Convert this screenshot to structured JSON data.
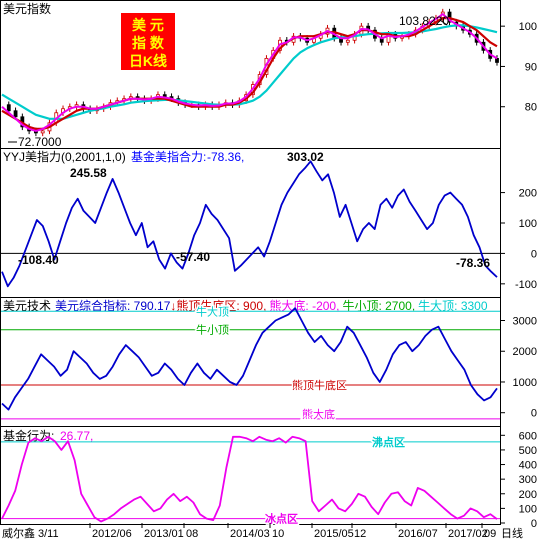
{
  "colors": {
    "bg": "#ffffff",
    "border": "#000000",
    "blue": "#0000cc",
    "red": "#cc0000",
    "magenta": "#ee00ee",
    "cyan": "#00cccc",
    "green": "#00aa00",
    "text": "#000000",
    "label_blue": "#0000ff"
  },
  "chart_data": [
    {
      "type": "candlestick",
      "panel_title": "美元指数",
      "badge_lines": [
        "美 元",
        "指 数",
        "日K线"
      ],
      "high_label": "103.8220",
      "low_label": "72.7000",
      "ylim": [
        70,
        106
      ],
      "yticks": [
        80,
        90,
        100
      ],
      "series": [
        {
          "name": "close",
          "color": "#000000",
          "values": [
            80.5,
            79,
            77.5,
            75,
            74,
            73.5,
            74,
            76,
            78.5,
            79.5,
            80,
            80.5,
            79.5,
            79,
            79.5,
            80,
            81,
            81.5,
            82,
            82.5,
            82,
            81.5,
            82,
            83,
            82.5,
            82,
            81,
            80.5,
            80.5,
            80,
            80.5,
            80,
            80.5,
            81,
            80.5,
            81.5,
            83,
            85.5,
            88,
            92,
            94,
            96.5,
            96,
            97.5,
            97,
            96,
            97,
            98,
            99.5,
            97,
            96,
            96.5,
            98,
            100,
            99,
            97,
            96,
            98,
            97,
            97.5,
            98,
            99,
            100,
            101,
            102,
            103.5,
            101,
            100,
            99,
            98,
            96,
            94,
            92,
            91
          ]
        },
        {
          "color": "#cc0000",
          "values": [
            79,
            78,
            77,
            76,
            75,
            74.5,
            74.5,
            75,
            76,
            77,
            78,
            79,
            79.5,
            79.5,
            79.5,
            80,
            80.5,
            81,
            81.5,
            82,
            82,
            82,
            82,
            82,
            82,
            81.5,
            81,
            80.5,
            80,
            80,
            80,
            80,
            80,
            80.5,
            80.5,
            81,
            82,
            83.5,
            86,
            89,
            92,
            94.5,
            96,
            97,
            97.5,
            97.5,
            97.5,
            98,
            98.5,
            98.5,
            98,
            97.5,
            98,
            99,
            99,
            98.5,
            98,
            98,
            97.5,
            97.5,
            97.5,
            98,
            99,
            100,
            101,
            102,
            102,
            101.5,
            101,
            100,
            99,
            97.5,
            96,
            95
          ]
        },
        {
          "color": "#ee00ee",
          "values": [
            80,
            78.5,
            77,
            75.5,
            74.5,
            74,
            74.5,
            75.5,
            77,
            78.5,
            79.5,
            80,
            80,
            79.5,
            79.5,
            80,
            80.5,
            81,
            81.5,
            82,
            82,
            81.8,
            82,
            82.5,
            82.3,
            82,
            81.3,
            80.8,
            80.5,
            80.3,
            80.4,
            80.2,
            80.3,
            80.8,
            80.8,
            81.3,
            82.5,
            84.5,
            87,
            90.5,
            93,
            95.5,
            96,
            97.2,
            97.2,
            96.5,
            97,
            97.8,
            98.8,
            98,
            97,
            97,
            97.8,
            99.3,
            99.2,
            98,
            97,
            97.6,
            97.3,
            97.5,
            97.9,
            98.7,
            99.8,
            100.8,
            101.8,
            103,
            101.5,
            100.5,
            99.5,
            98.5,
            97,
            95,
            93,
            92
          ]
        },
        {
          "color": "#00cccc",
          "values": [
            83,
            82,
            81,
            80,
            79,
            78,
            77.5,
            77,
            77,
            77,
            77.5,
            78,
            78.5,
            79,
            79.3,
            79.6,
            80,
            80.3,
            80.6,
            81,
            81.2,
            81.4,
            81.5,
            81.6,
            81.7,
            81.7,
            81.6,
            81.4,
            81.2,
            81,
            80.8,
            80.6,
            80.5,
            80.5,
            80.5,
            80.6,
            81,
            81.5,
            82.5,
            84,
            86,
            88,
            90,
            92,
            93.5,
            94.5,
            95.3,
            96,
            96.5,
            97,
            97.2,
            97.3,
            97.5,
            97.8,
            98,
            98.1,
            98.2,
            98.3,
            98.3,
            98.3,
            98.4,
            98.5,
            98.7,
            99,
            99.3,
            99.7,
            100,
            100.2,
            100.2,
            100,
            99.7,
            99.3,
            98.9,
            98.5
          ]
        }
      ]
    },
    {
      "type": "line",
      "panel_title": "YYJ美指力(0,2001,1,0)",
      "legend_label": "基金美指合力:",
      "legend_value": "-78.36,",
      "ylim": [
        -140,
        340
      ],
      "yticks": [
        -100,
        0,
        100,
        200
      ],
      "zero_line": 0,
      "annotations": [
        "245.58",
        "-108.40",
        "-57.40",
        "303.02",
        "-78.36"
      ],
      "series": [
        {
          "name": "基金美指合力",
          "color": "#0000cc",
          "values": [
            -60,
            -108,
            -80,
            -40,
            10,
            60,
            110,
            90,
            40,
            -20,
            40,
            100,
            150,
            180,
            140,
            120,
            100,
            150,
            200,
            245,
            200,
            150,
            100,
            60,
            100,
            20,
            40,
            -20,
            -50,
            0,
            -30,
            -50,
            0,
            60,
            100,
            160,
            130,
            110,
            80,
            50,
            -57,
            -40,
            -20,
            0,
            20,
            -10,
            40,
            100,
            160,
            200,
            230,
            260,
            280,
            303,
            270,
            240,
            260,
            200,
            120,
            160,
            100,
            40,
            80,
            100,
            80,
            160,
            180,
            150,
            190,
            210,
            170,
            140,
            110,
            80,
            100,
            160,
            190,
            200,
            180,
            160,
            120,
            60,
            20,
            -40,
            -60,
            -78
          ]
        }
      ]
    },
    {
      "type": "line",
      "panel_title": "美元技术",
      "legend_items": [
        {
          "label": "美元综合指标: 790.17",
          "color": "#0000cc"
        },
        {
          "label": "↓",
          "color": "#cc0000"
        },
        {
          "label": "熊顶牛底区: 900,",
          "color": "#cc0000"
        },
        {
          "label": "熊大底: -200,",
          "color": "#ee00ee"
        },
        {
          "label": "牛小顶: 2700,",
          "color": "#00aa00"
        },
        {
          "label": "牛大顶: 3300",
          "color": "#00cccc"
        }
      ],
      "ylim": [
        -400,
        3700
      ],
      "yticks": [
        0,
        1000,
        2000,
        3000
      ],
      "ref_lines": [
        {
          "label": "牛大顶",
          "value": 3300,
          "color": "#00cccc"
        },
        {
          "label": "牛小顶",
          "value": 2700,
          "color": "#00aa00"
        },
        {
          "label": "熊顶牛底区",
          "value": 900,
          "color": "#cc0000"
        },
        {
          "label": "熊大底",
          "value": -200,
          "color": "#ee00ee"
        }
      ],
      "series": [
        {
          "name": "美元综合指标",
          "color": "#0000cc",
          "values": [
            300,
            100,
            500,
            800,
            1100,
            1500,
            1900,
            1700,
            1500,
            1200,
            1400,
            2000,
            1800,
            1600,
            1300,
            1100,
            1200,
            1500,
            1900,
            2200,
            2000,
            1800,
            1500,
            1200,
            1300,
            1600,
            1400,
            1100,
            900,
            1300,
            1600,
            1300,
            1100,
            1400,
            1200,
            1000,
            900,
            1200,
            1700,
            2200,
            2600,
            2800,
            3000,
            3100,
            3200,
            3400,
            3000,
            2600,
            2300,
            2500,
            2200,
            2000,
            2300,
            2800,
            2600,
            2200,
            1800,
            1300,
            1000,
            1400,
            1900,
            2200,
            2300,
            2000,
            2200,
            2500,
            2700,
            2800,
            2400,
            2000,
            1700,
            1400,
            900,
            600,
            400,
            500,
            790
          ]
        }
      ]
    },
    {
      "type": "line",
      "panel_title": "基金行为:",
      "legend_value": "26.77,",
      "ylim": [
        0,
        650
      ],
      "yticks": [
        0,
        100,
        200,
        300,
        400,
        500,
        600
      ],
      "ref_lines": [
        {
          "label": "沸点区",
          "value": 555,
          "color": "#00cccc"
        },
        {
          "label": "冰点区",
          "value": 30,
          "color": "#ee00ee"
        }
      ],
      "series": [
        {
          "name": "基金行为",
          "color": "#ee00ee",
          "values": [
            30,
            120,
            220,
            400,
            550,
            580,
            560,
            590,
            560,
            500,
            560,
            430,
            200,
            120,
            40,
            10,
            30,
            60,
            100,
            130,
            160,
            180,
            130,
            80,
            100,
            160,
            200,
            150,
            180,
            140,
            60,
            30,
            20,
            120,
            380,
            590,
            590,
            580,
            560,
            590,
            570,
            560,
            580,
            550,
            590,
            580,
            560,
            150,
            80,
            120,
            160,
            100,
            80,
            130,
            200,
            180,
            110,
            60,
            140,
            200,
            210,
            150,
            120,
            240,
            220,
            180,
            140,
            100,
            60,
            30,
            50,
            100,
            80,
            40,
            60,
            27
          ]
        }
      ]
    }
  ],
  "xaxis": {
    "ticks": [
      "2012/06",
      "2013/01",
      "08",
      "2014/03",
      "10",
      "2015/05",
      "12",
      "2016/07",
      "2017/02",
      "09"
    ],
    "unit": "日线",
    "left_label": "威尔鑫",
    "first_label": "3/11"
  }
}
